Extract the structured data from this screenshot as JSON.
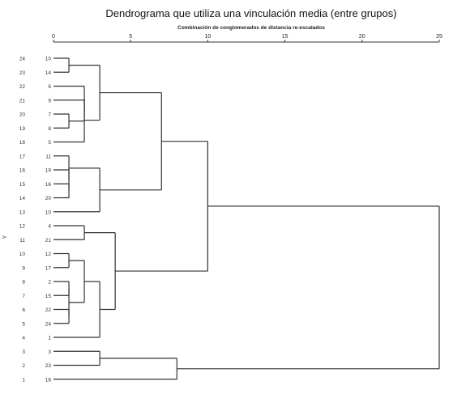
{
  "chart_data": {
    "type": "dendrogram",
    "title": "Dendrograma que utiliza una vinculación media (entre grupos)",
    "subtitle": "Combinación de conglomerados de distancia re-escalados",
    "xlabel": "",
    "ylabel": "Y",
    "xlim": [
      0,
      25
    ],
    "x_ticks": [
      0,
      5,
      10,
      15,
      20,
      25
    ],
    "grid": false,
    "rows": [
      {
        "y_label": "24",
        "case": "10"
      },
      {
        "y_label": "23",
        "case": "14"
      },
      {
        "y_label": "22",
        "case": "6"
      },
      {
        "y_label": "21",
        "case": "9"
      },
      {
        "y_label": "20",
        "case": "7"
      },
      {
        "y_label": "19",
        "case": "8"
      },
      {
        "y_label": "18",
        "case": "5"
      },
      {
        "y_label": "17",
        "case": "11"
      },
      {
        "y_label": "16",
        "case": "19"
      },
      {
        "y_label": "15",
        "case": "16"
      },
      {
        "y_label": "14",
        "case": "20"
      },
      {
        "y_label": "13",
        "case": "10"
      },
      {
        "y_label": "12",
        "case": "4"
      },
      {
        "y_label": "11",
        "case": "21"
      },
      {
        "y_label": "10",
        "case": "12"
      },
      {
        "y_label": "9",
        "case": "17"
      },
      {
        "y_label": "8",
        "case": "2"
      },
      {
        "y_label": "7",
        "case": "15"
      },
      {
        "y_label": "6",
        "case": "22"
      },
      {
        "y_label": "5",
        "case": "24"
      },
      {
        "y_label": "4",
        "case": "1"
      },
      {
        "y_label": "3",
        "case": "3"
      },
      {
        "y_label": "2",
        "case": "23"
      },
      {
        "y_label": "1",
        "case": "18"
      }
    ],
    "merges": [
      {
        "id": "A",
        "children": [
          0,
          1
        ],
        "distance": 1
      },
      {
        "id": "B",
        "children": [
          4,
          5
        ],
        "distance": 1
      },
      {
        "id": "C",
        "children": [
          3,
          "B"
        ],
        "distance": 2
      },
      {
        "id": "D",
        "children": [
          2,
          "C"
        ],
        "distance": 2
      },
      {
        "id": "E",
        "children": [
          "D",
          6
        ],
        "distance": 2
      },
      {
        "id": "F",
        "children": [
          "A",
          "E"
        ],
        "distance": 3
      },
      {
        "id": "G",
        "children": [
          9,
          10
        ],
        "distance": 1
      },
      {
        "id": "H",
        "children": [
          8,
          "G"
        ],
        "distance": 1
      },
      {
        "id": "I",
        "children": [
          7,
          "H"
        ],
        "distance": 1
      },
      {
        "id": "J",
        "children": [
          "I",
          11
        ],
        "distance": 3
      },
      {
        "id": "K",
        "children": [
          "F",
          "J"
        ],
        "distance": 7
      },
      {
        "id": "L",
        "children": [
          12,
          13
        ],
        "distance": 2
      },
      {
        "id": "M",
        "children": [
          14,
          15
        ],
        "distance": 1
      },
      {
        "id": "N",
        "children": [
          16,
          17
        ],
        "distance": 1
      },
      {
        "id": "O",
        "children": [
          18,
          19
        ],
        "distance": 1
      },
      {
        "id": "P",
        "children": [
          "N",
          "O"
        ],
        "distance": 1
      },
      {
        "id": "Q",
        "children": [
          "M",
          "P"
        ],
        "distance": 2
      },
      {
        "id": "R",
        "children": [
          "Q",
          20
        ],
        "distance": 3
      },
      {
        "id": "S",
        "children": [
          "L",
          "R"
        ],
        "distance": 4
      },
      {
        "id": "T",
        "children": [
          "K",
          "S"
        ],
        "distance": 10
      },
      {
        "id": "U",
        "children": [
          21,
          22
        ],
        "distance": 3
      },
      {
        "id": "V",
        "children": [
          "U",
          23
        ],
        "distance": 8
      },
      {
        "id": "W",
        "children": [
          "T",
          "V"
        ],
        "distance": 25
      }
    ]
  }
}
